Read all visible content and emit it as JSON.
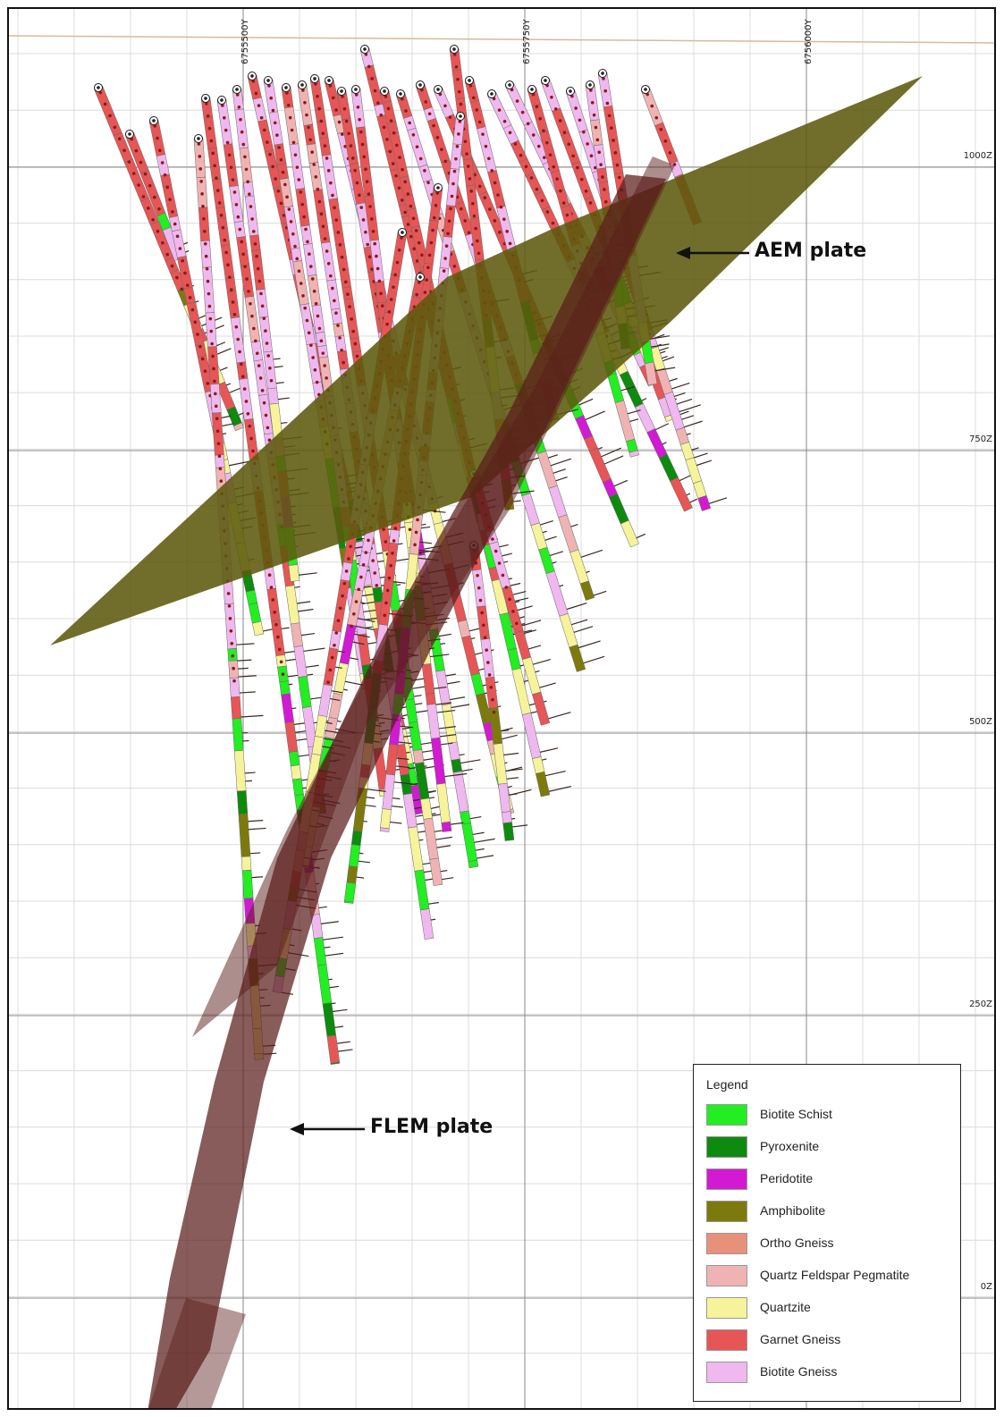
{
  "northings": [
    {
      "label": "6755500Y",
      "value": 6755500
    },
    {
      "label": "6755750Y",
      "value": 6755750
    },
    {
      "label": "6756000Y",
      "value": 6756000
    }
  ],
  "elevations": [
    {
      "label": "1000Z",
      "value": 1000
    },
    {
      "label": "750Z",
      "value": 750
    },
    {
      "label": "500Z",
      "value": 500
    },
    {
      "label": "250Z",
      "value": 250
    },
    {
      "label": "0Z",
      "value": 0
    }
  ],
  "annotations": {
    "aem": "AEM plate",
    "flem": "FLEM plate"
  },
  "plates": {
    "aem_color": "#5c5a0c",
    "flem_color": "#5a1d1a"
  },
  "legend": {
    "title": "Legend",
    "items": [
      {
        "label": "Biotite Schist",
        "color": "#22ee22"
      },
      {
        "label": "Pyroxenite",
        "color": "#0e8a0e"
      },
      {
        "label": "Peridotite",
        "color": "#d21ad2"
      },
      {
        "label": "Amphibolite",
        "color": "#7d7a0d"
      },
      {
        "label": "Ortho Gneiss",
        "color": "#e8917a"
      },
      {
        "label": "Quartz Feldspar Pegmatite",
        "color": "#f0b3b3"
      },
      {
        "label": "Quartzite",
        "color": "#f6f39b"
      },
      {
        "label": "Garnet Gneiss",
        "color": "#e65656"
      },
      {
        "label": "Biotite Gneiss",
        "color": "#efb8ef"
      }
    ]
  }
}
